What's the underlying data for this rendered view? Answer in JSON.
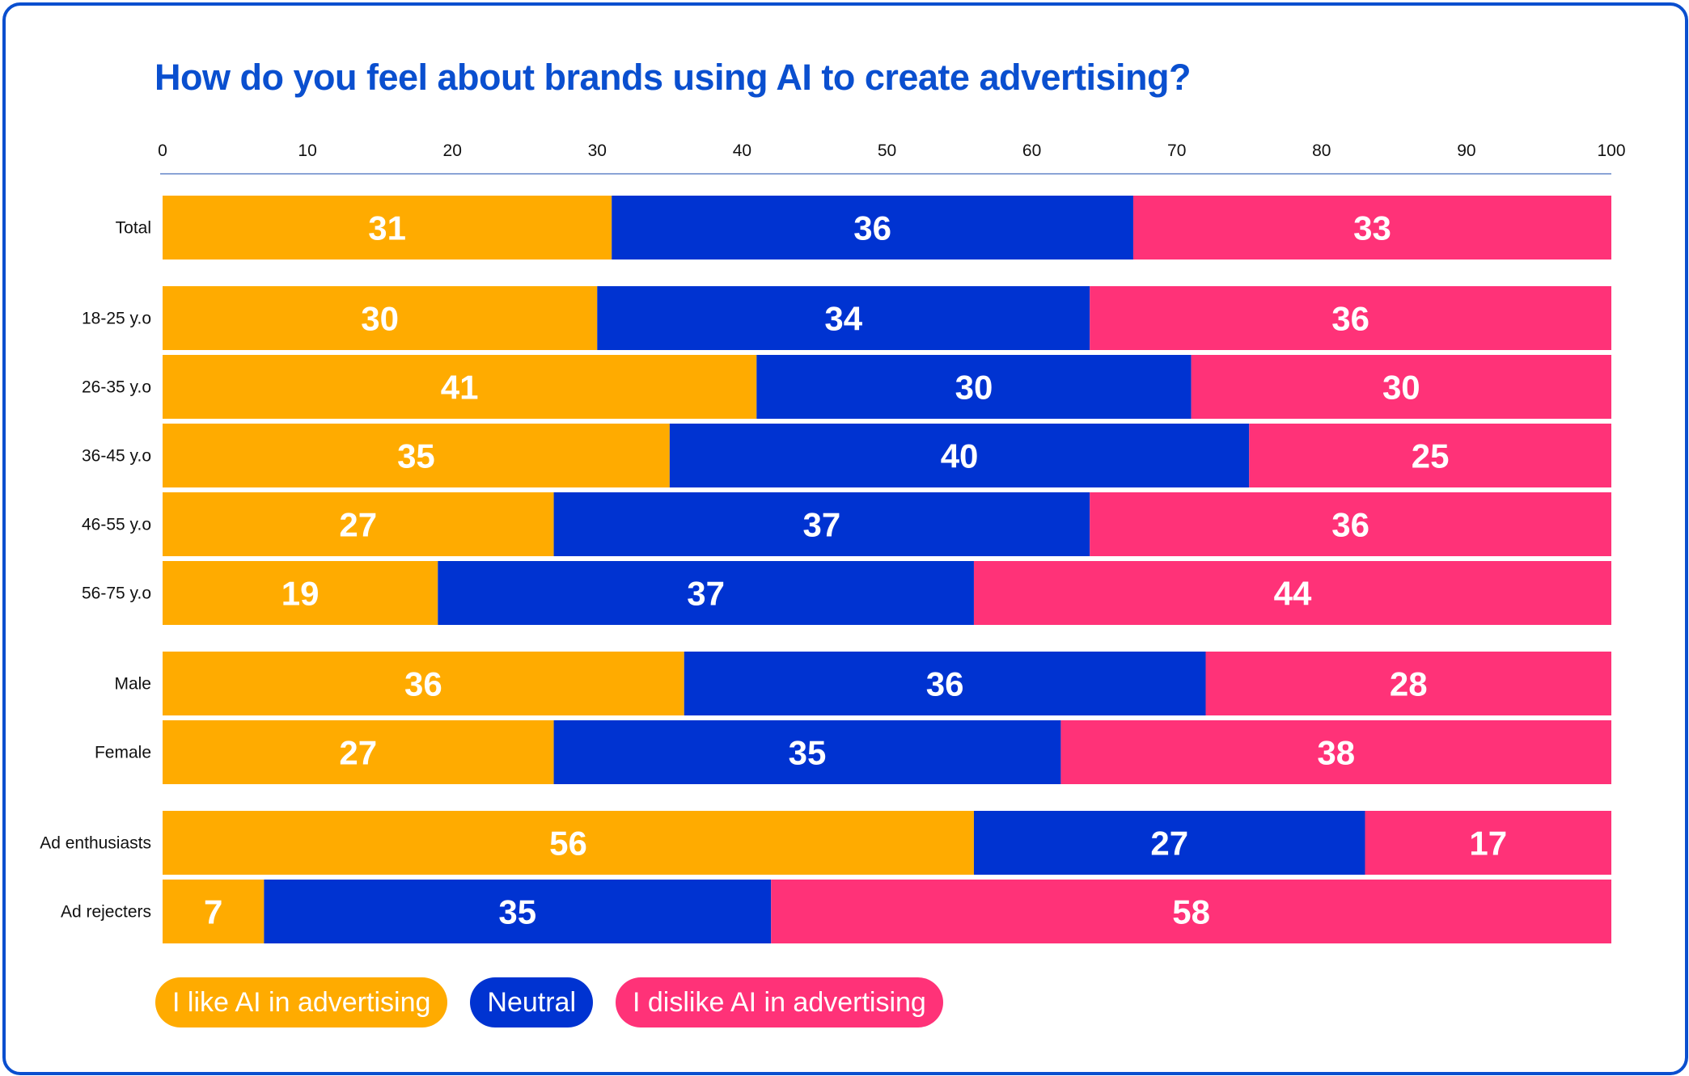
{
  "chart_data": {
    "type": "bar",
    "orientation": "horizontal",
    "stacked": true,
    "title": "How do you feel about brands using AI to create advertising?",
    "xlim": [
      0,
      100
    ],
    "xticks": [
      "0",
      "10",
      "20",
      "30",
      "40",
      "50",
      "60",
      "70",
      "80",
      "90",
      "100"
    ],
    "categories": [
      "Total",
      "18-25 y.o",
      "26-35 y.o",
      "36-45 y.o",
      "46-55 y.o",
      "56-75 y.o",
      "Male",
      "Female",
      "Ad enthusiasts",
      "Ad rejecters"
    ],
    "groups": [
      [
        0
      ],
      [
        1,
        2,
        3,
        4,
        5
      ],
      [
        6,
        7
      ],
      [
        8,
        9
      ]
    ],
    "series": [
      {
        "name": "I like AI in advertising",
        "color": "#ffab00",
        "values": [
          31,
          30,
          41,
          35,
          27,
          19,
          36,
          27,
          56,
          7
        ]
      },
      {
        "name": "Neutral",
        "color": "#0033d1",
        "values": [
          36,
          34,
          30,
          40,
          37,
          37,
          36,
          35,
          27,
          35
        ]
      },
      {
        "name": "I dislike AI in advertising",
        "color": "#ff3278",
        "values": [
          33,
          36,
          30,
          25,
          36,
          44,
          28,
          38,
          17,
          58
        ]
      }
    ],
    "axis_line_color": "#8aa4d6",
    "legend_position": "bottom-left"
  }
}
